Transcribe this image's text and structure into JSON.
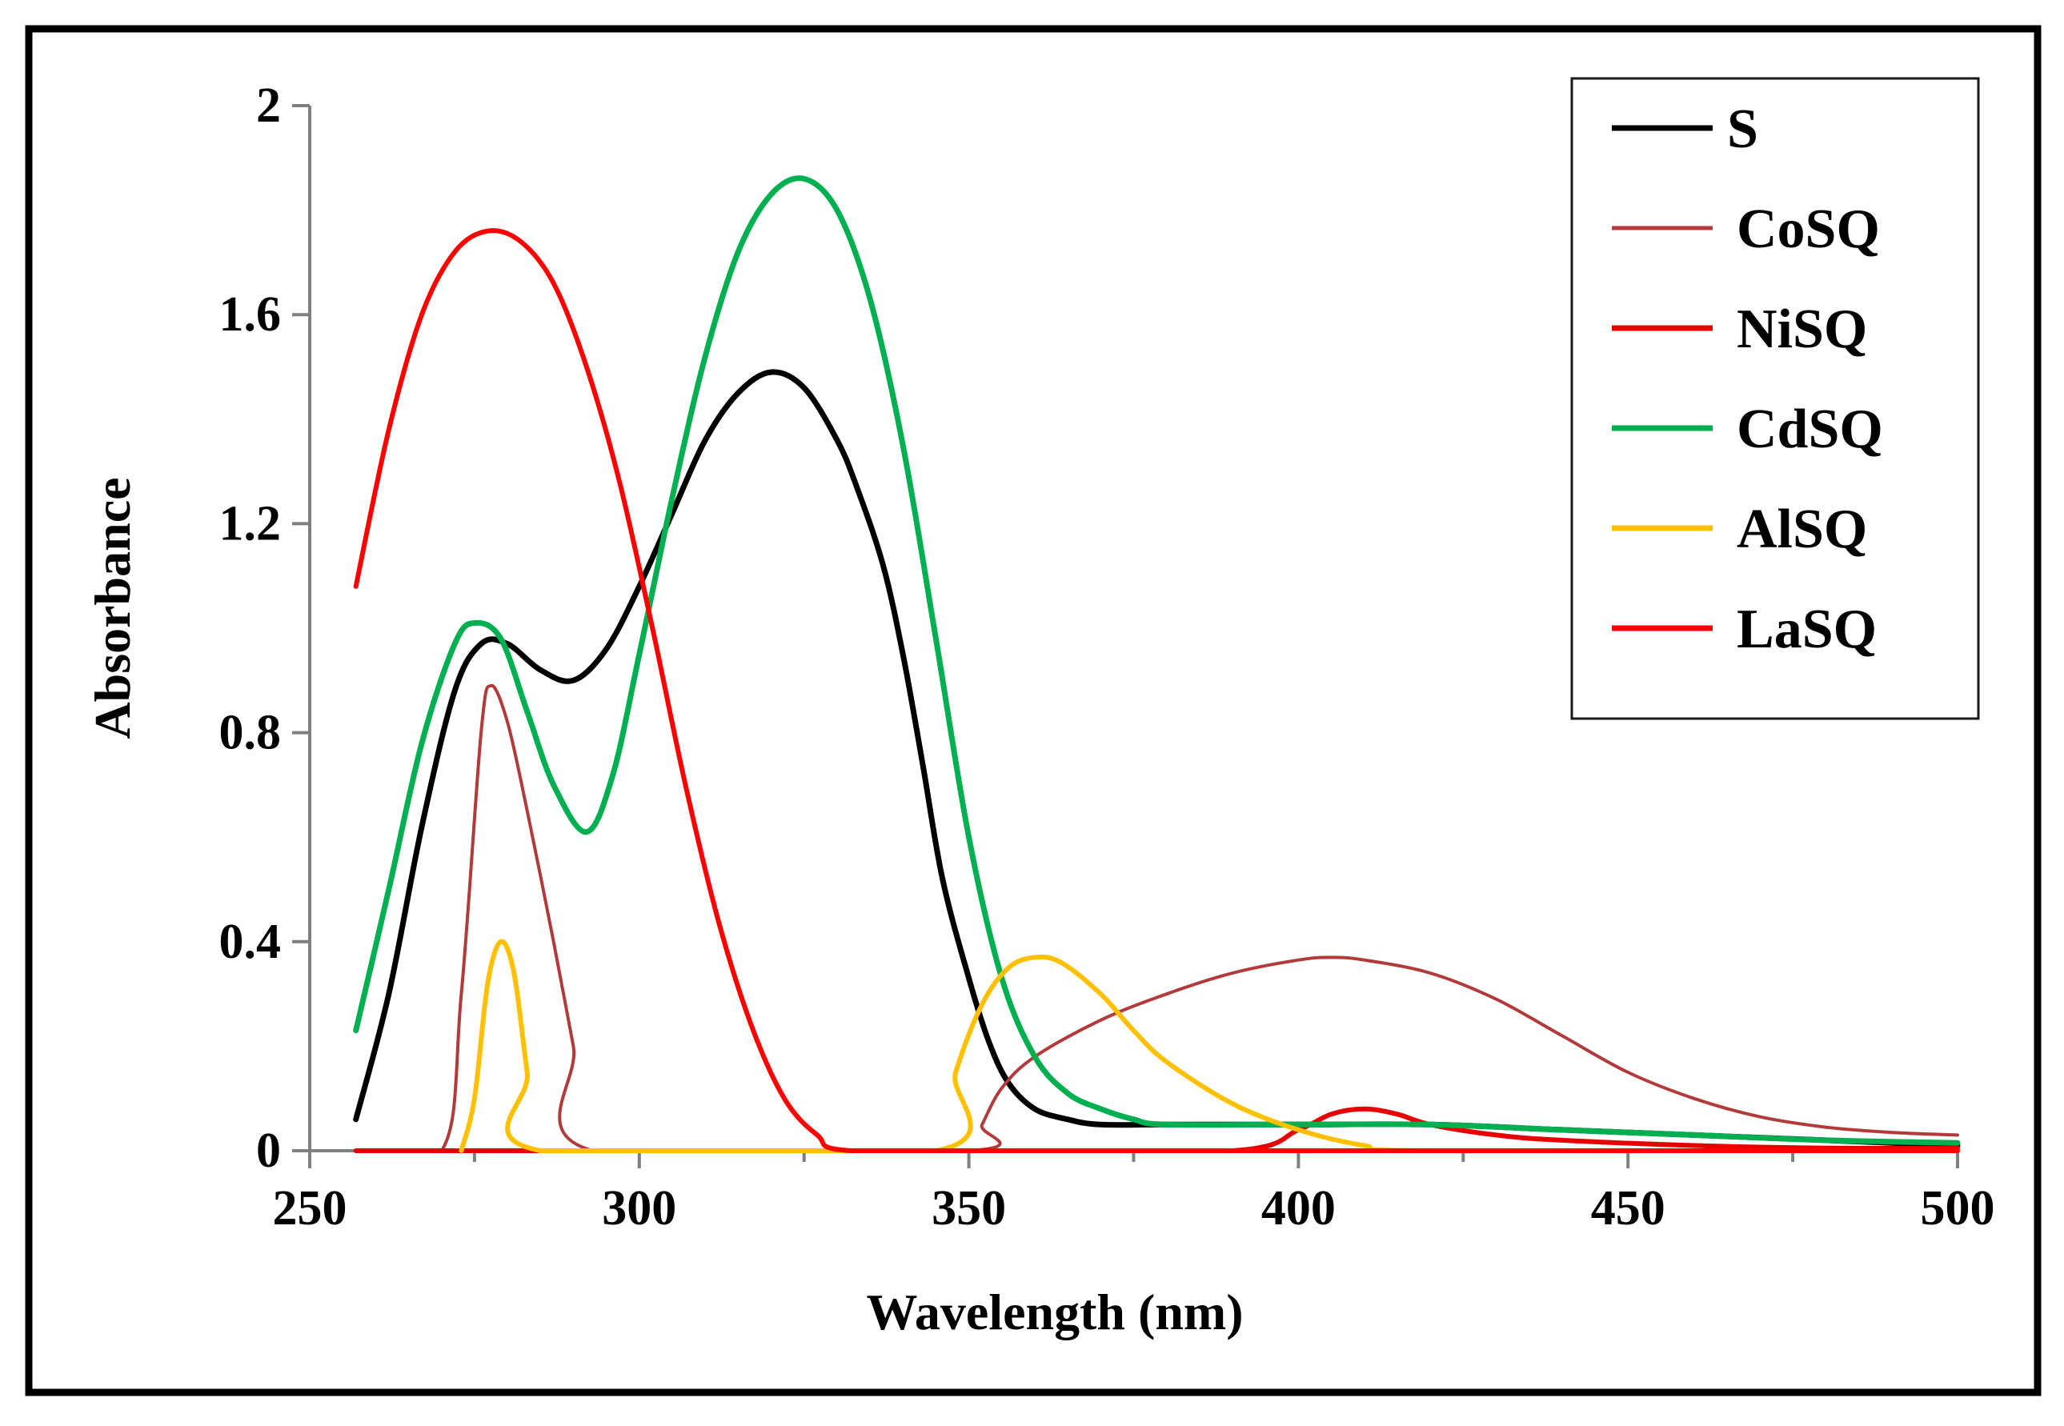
{
  "chart_data": {
    "type": "line",
    "title": "",
    "xlabel": "Wavelength (nm)",
    "ylabel": "Absorbance",
    "xlim": [
      250,
      500
    ],
    "ylim": [
      0,
      2
    ],
    "x_ticks": [
      250,
      300,
      350,
      400,
      450,
      500
    ],
    "x_tick_labels": [
      "250",
      "300",
      "350",
      "400",
      "450",
      "500"
    ],
    "y_ticks": [
      0,
      0.4,
      0.8,
      1.2,
      1.6,
      2
    ],
    "y_tick_labels": [
      "0",
      "0.4",
      "0.8",
      "1.2",
      "1.6",
      "2"
    ],
    "grid": false,
    "legend_position": "top-right",
    "series": [
      {
        "name": "S",
        "color": "#000000",
        "points": [
          [
            257,
            0.06
          ],
          [
            262,
            0.3
          ],
          [
            267,
            0.62
          ],
          [
            272,
            0.88
          ],
          [
            276,
            0.97
          ],
          [
            280,
            0.97
          ],
          [
            285,
            0.92
          ],
          [
            290,
            0.9
          ],
          [
            295,
            0.96
          ],
          [
            300,
            1.08
          ],
          [
            305,
            1.22
          ],
          [
            310,
            1.36
          ],
          [
            315,
            1.45
          ],
          [
            320,
            1.49
          ],
          [
            325,
            1.46
          ],
          [
            330,
            1.36
          ],
          [
            333,
            1.27
          ],
          [
            337,
            1.12
          ],
          [
            340,
            0.95
          ],
          [
            343,
            0.74
          ],
          [
            346,
            0.52
          ],
          [
            350,
            0.33
          ],
          [
            353,
            0.21
          ],
          [
            356,
            0.13
          ],
          [
            360,
            0.08
          ],
          [
            365,
            0.06
          ],
          [
            370,
            0.05
          ],
          [
            380,
            0.05
          ],
          [
            400,
            0.05
          ],
          [
            420,
            0.05
          ],
          [
            440,
            0.04
          ],
          [
            460,
            0.03
          ],
          [
            480,
            0.02
          ],
          [
            500,
            0.01
          ]
        ]
      },
      {
        "name": "CoSQ",
        "color": "#b23a3a",
        "points": [
          [
            257,
            0
          ],
          [
            270,
            0
          ],
          [
            273,
            0.3
          ],
          [
            276,
            0.8
          ],
          [
            277.5,
            0.89
          ],
          [
            280,
            0.82
          ],
          [
            283,
            0.65
          ],
          [
            287,
            0.4
          ],
          [
            290,
            0.2
          ],
          [
            293,
            0
          ],
          [
            350,
            0
          ],
          [
            352,
            0.05
          ],
          [
            355,
            0.12
          ],
          [
            360,
            0.18
          ],
          [
            370,
            0.25
          ],
          [
            380,
            0.3
          ],
          [
            390,
            0.34
          ],
          [
            400,
            0.365
          ],
          [
            405,
            0.37
          ],
          [
            410,
            0.365
          ],
          [
            420,
            0.34
          ],
          [
            430,
            0.29
          ],
          [
            440,
            0.22
          ],
          [
            450,
            0.15
          ],
          [
            460,
            0.1
          ],
          [
            470,
            0.065
          ],
          [
            480,
            0.045
          ],
          [
            490,
            0.035
          ],
          [
            500,
            0.03
          ]
        ]
      },
      {
        "name": "NiSQ",
        "color": "#e60000",
        "points": [
          [
            257,
            0
          ],
          [
            300,
            0
          ],
          [
            350,
            0
          ],
          [
            390,
            0
          ],
          [
            400,
            0.04
          ],
          [
            405,
            0.07
          ],
          [
            410,
            0.08
          ],
          [
            415,
            0.07
          ],
          [
            420,
            0.05
          ],
          [
            430,
            0.03
          ],
          [
            440,
            0.02
          ],
          [
            460,
            0.01
          ],
          [
            480,
            0.005
          ],
          [
            500,
            0.005
          ]
        ]
      },
      {
        "name": "CdSQ",
        "color": "#00b050",
        "points": [
          [
            257,
            0.23
          ],
          [
            262,
            0.5
          ],
          [
            267,
            0.78
          ],
          [
            272,
            0.97
          ],
          [
            275,
            1.01
          ],
          [
            279,
            0.98
          ],
          [
            283,
            0.84
          ],
          [
            287,
            0.7
          ],
          [
            292,
            0.61
          ],
          [
            296,
            0.72
          ],
          [
            300,
            0.95
          ],
          [
            305,
            1.25
          ],
          [
            310,
            1.52
          ],
          [
            315,
            1.72
          ],
          [
            320,
            1.83
          ],
          [
            325,
            1.86
          ],
          [
            330,
            1.8
          ],
          [
            335,
            1.63
          ],
          [
            340,
            1.35
          ],
          [
            345,
            0.98
          ],
          [
            350,
            0.6
          ],
          [
            355,
            0.33
          ],
          [
            360,
            0.18
          ],
          [
            365,
            0.11
          ],
          [
            370,
            0.08
          ],
          [
            375,
            0.06
          ],
          [
            380,
            0.05
          ],
          [
            400,
            0.05
          ],
          [
            420,
            0.05
          ],
          [
            440,
            0.04
          ],
          [
            460,
            0.03
          ],
          [
            480,
            0.02
          ],
          [
            500,
            0.015
          ]
        ]
      },
      {
        "name": "AlSQ",
        "color": "#ffc000",
        "points": [
          [
            273,
            0
          ],
          [
            275,
            0.1
          ],
          [
            277,
            0.32
          ],
          [
            279,
            0.4
          ],
          [
            281,
            0.34
          ],
          [
            283,
            0.15
          ],
          [
            285,
            0
          ],
          [
            345,
            0
          ],
          [
            348,
            0.15
          ],
          [
            352,
            0.28
          ],
          [
            356,
            0.35
          ],
          [
            360,
            0.37
          ],
          [
            364,
            0.36
          ],
          [
            370,
            0.3
          ],
          [
            375,
            0.23
          ],
          [
            380,
            0.17
          ],
          [
            390,
            0.09
          ],
          [
            400,
            0.04
          ],
          [
            410,
            0.01
          ],
          [
            420,
            0
          ],
          [
            500,
            0
          ]
        ]
      },
      {
        "name": "LaSQ",
        "color": "#ff0000",
        "points": [
          [
            257,
            1.08
          ],
          [
            262,
            1.38
          ],
          [
            267,
            1.6
          ],
          [
            272,
            1.72
          ],
          [
            277,
            1.76
          ],
          [
            282,
            1.74
          ],
          [
            287,
            1.66
          ],
          [
            292,
            1.5
          ],
          [
            297,
            1.28
          ],
          [
            302,
            1.0
          ],
          [
            307,
            0.7
          ],
          [
            312,
            0.44
          ],
          [
            317,
            0.24
          ],
          [
            322,
            0.1
          ],
          [
            327,
            0.03
          ],
          [
            332,
            0
          ],
          [
            360,
            0
          ],
          [
            400,
            0
          ],
          [
            450,
            0
          ],
          [
            500,
            0
          ]
        ]
      }
    ]
  }
}
